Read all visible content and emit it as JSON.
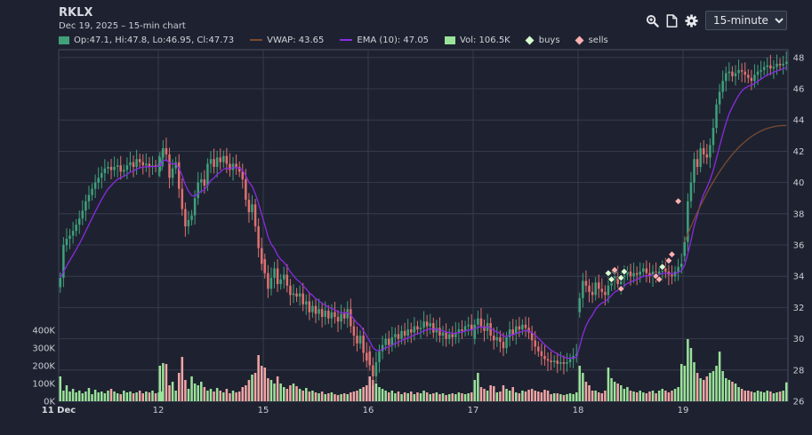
{
  "header": {
    "ticker": "RKLX",
    "subtitle": "Dec 19, 2025 – 15-min chart"
  },
  "toolbar": {
    "zoom_icon": "zoom-in-icon",
    "document_icon": "document-icon",
    "settings_icon": "gear-icon",
    "interval_options": [
      "15-minute"
    ],
    "interval_selected": "15-minute"
  },
  "legend": {
    "ohlc": "Op:47.1, Hi:47.8, Lo:46.95, Cl:47.73",
    "vwap": "VWAP: 43.65",
    "ema": "EMA (10): 47.05",
    "vol": "Vol: 106.5K",
    "buys": "buys",
    "sells": "sells"
  },
  "colors": {
    "background": "#1e2230",
    "grid": "#3b4152",
    "up": "#3fa07a",
    "down": "#e0706f",
    "volume_up": "#9be39a",
    "volume_down": "#f2a6a6",
    "vwap": "#7a4a30",
    "ema": "#8a2be2",
    "buy_marker": "#d8ffd0",
    "sell_marker": "#ffb0b0"
  },
  "chart_data": {
    "type": "candlestick",
    "interval": "15-minute",
    "price_axis": {
      "position": "right",
      "ticks": [
        26,
        28,
        30,
        32,
        34,
        36,
        38,
        40,
        42,
        44,
        46,
        48
      ],
      "ylim": [
        26,
        48.5
      ]
    },
    "volume_axis": {
      "position": "left",
      "ticks": [
        "0K",
        "100K",
        "200K",
        "300K",
        "400K"
      ],
      "max": 400000
    },
    "x_axis": {
      "ticks": [
        "11 Dec",
        "12",
        "15",
        "16",
        "17",
        "18",
        "19"
      ]
    },
    "sessions": [
      {
        "label": "11 Dec",
        "closes": [
          33.9,
          36.0,
          36.4,
          36.6,
          36.9,
          37.3,
          37.7,
          38.2,
          38.8,
          39.2,
          39.6,
          40.0,
          40.3,
          40.6,
          40.9,
          41.0,
          40.8,
          41.0,
          41.1,
          40.7,
          40.8,
          41.1,
          41.3,
          41.0,
          41.5,
          41.3,
          41.1,
          41.2,
          41.0,
          41.1,
          41.0,
          41.2,
          41.4
        ]
      },
      {
        "label": "12",
        "closes": [
          41.6,
          42.2,
          41.8,
          40.3,
          40.9,
          41.3,
          39.6,
          38.3,
          37.2,
          37.6,
          37.9,
          39.0,
          40.0,
          40.2,
          39.8,
          41.2,
          41.5,
          41.0,
          41.6,
          41.3,
          41.7,
          41.2,
          40.8,
          41.2,
          41.0,
          40.7,
          40.2,
          38.9,
          38.1,
          38.6,
          37.2,
          35.8,
          34.8
        ]
      },
      {
        "label": "15",
        "closes": [
          34.2,
          33.2,
          33.9,
          34.5,
          33.5,
          33.8,
          34.1,
          33.4,
          32.8,
          32.9,
          32.7,
          32.9,
          32.2,
          32.4,
          31.7,
          32.1,
          31.6,
          31.9,
          31.4,
          31.8,
          31.3,
          31.7,
          31.4,
          31.1,
          31.6,
          31.3,
          31.9,
          30.8,
          30.2,
          29.7,
          30.2,
          29.1,
          28.6
        ]
      },
      {
        "label": "16",
        "closes": [
          28.3,
          27.6,
          28.5,
          29.2,
          29.6,
          30.0,
          29.6,
          30.1,
          30.3,
          30.0,
          30.5,
          30.2,
          30.6,
          30.4,
          30.8,
          30.6,
          30.7,
          31.1,
          30.8,
          31.0,
          30.4,
          30.7,
          30.2,
          30.4,
          30.0,
          30.3,
          30.1,
          30.4,
          30.6,
          30.5,
          30.8,
          30.9,
          30.6
        ]
      },
      {
        "label": "17",
        "closes": [
          30.9,
          31.3,
          30.8,
          30.5,
          31.0,
          30.2,
          29.9,
          30.1,
          29.8,
          29.4,
          30.1,
          30.6,
          30.3,
          30.8,
          30.6,
          30.9,
          30.7,
          30.4,
          29.9,
          29.5,
          29.2,
          28.9,
          28.7,
          28.6,
          28.5,
          28.6,
          28.4,
          28.5,
          28.4,
          28.5,
          28.7,
          28.9,
          29.0
        ]
      },
      {
        "label": "18",
        "closes": [
          32.6,
          33.7,
          33.4,
          33.0,
          32.8,
          33.6,
          33.2,
          33.0,
          32.8,
          33.4,
          33.7,
          34.0,
          33.5,
          33.8,
          34.1,
          34.3,
          34.0,
          34.2,
          34.1,
          34.3,
          34.5,
          34.2,
          34.0,
          34.3,
          34.1,
          34.3,
          34.5,
          34.3,
          34.1,
          34.0,
          34.3,
          34.6,
          34.8
        ]
      },
      {
        "label": "19",
        "closes": [
          36.2,
          38.8,
          40.0,
          41.5,
          41.0,
          42.2,
          41.8,
          41.6,
          42.4,
          43.5,
          45.0,
          45.8,
          46.5,
          47.0,
          47.1,
          46.8,
          47.0,
          47.2,
          47.1,
          46.9,
          46.7,
          46.5,
          46.9,
          47.1,
          47.2,
          47.4,
          47.5,
          47.3,
          47.4,
          47.6,
          47.5,
          47.6,
          47.73
        ]
      }
    ],
    "vwap_series": [
      {
        "session": "19",
        "start": 36.2,
        "end": 43.65
      }
    ],
    "ema_period": 10,
    "ema_last": 47.05,
    "buys": [
      {
        "session": "18",
        "bar": 9,
        "price": 34.2
      },
      {
        "session": "18",
        "bar": 10,
        "price": 33.8
      },
      {
        "session": "18",
        "bar": 11,
        "price": 34.3
      },
      {
        "session": "18",
        "bar": 13,
        "price": 33.9
      },
      {
        "session": "18",
        "bar": 14,
        "price": 34.3
      },
      {
        "session": "18",
        "bar": 26,
        "price": 34.6
      }
    ],
    "sells": [
      {
        "session": "18",
        "bar": 11,
        "price": 34.4
      },
      {
        "session": "18",
        "bar": 13,
        "price": 33.2
      },
      {
        "session": "18",
        "bar": 24,
        "price": 34.0
      },
      {
        "session": "18",
        "bar": 25,
        "price": 33.8
      },
      {
        "session": "18",
        "bar": 28,
        "price": 35.0
      },
      {
        "session": "18",
        "bar": 29,
        "price": 35.4
      },
      {
        "session": "18",
        "bar": 31,
        "price": 38.8
      }
    ],
    "volumes_k": [
      [
        140,
        60,
        90,
        55,
        70,
        50,
        60,
        45,
        55,
        75,
        40,
        65,
        50,
        55,
        45,
        60,
        70,
        55,
        45,
        40,
        60,
        50,
        55,
        45,
        50,
        60,
        45,
        55,
        50,
        60,
        45,
        50,
        55
      ],
      [
        200,
        215,
        210,
        90,
        110,
        60,
        160,
        250,
        120,
        70,
        140,
        100,
        90,
        110,
        80,
        60,
        70,
        55,
        75,
        60,
        50,
        70,
        45,
        60,
        50,
        55,
        80,
        90,
        120,
        150,
        160,
        260,
        200
      ],
      [
        190,
        130,
        120,
        100,
        140,
        100,
        80,
        70,
        90,
        100,
        85,
        70,
        60,
        75,
        55,
        60,
        50,
        45,
        55,
        40,
        45,
        50,
        40,
        35,
        40,
        45,
        40,
        50,
        55,
        60,
        70,
        80,
        90
      ],
      [
        140,
        120,
        100,
        80,
        70,
        60,
        50,
        60,
        45,
        55,
        40,
        50,
        45,
        55,
        40,
        50,
        45,
        60,
        50,
        40,
        45,
        50,
        40,
        45,
        35,
        40,
        45,
        40,
        50,
        45,
        40,
        45,
        50
      ],
      [
        120,
        160,
        80,
        70,
        60,
        90,
        85,
        50,
        55,
        90,
        70,
        60,
        80,
        50,
        45,
        60,
        55,
        65,
        70,
        60,
        55,
        50,
        65,
        60,
        40,
        45,
        45,
        40,
        35,
        40,
        45,
        40,
        50
      ],
      [
        200,
        160,
        110,
        90,
        60,
        60,
        50,
        45,
        60,
        190,
        130,
        110,
        100,
        90,
        70,
        80,
        60,
        55,
        50,
        60,
        50,
        45,
        55,
        60,
        45,
        60,
        70,
        60,
        50,
        60,
        70,
        80,
        210
      ],
      [
        200,
        350,
        300,
        220,
        160,
        130,
        120,
        140,
        160,
        170,
        200,
        280,
        170,
        130,
        120,
        110,
        100,
        80,
        70,
        60,
        60,
        55,
        50,
        60,
        55,
        50,
        60,
        55,
        45,
        50,
        55,
        60,
        106.5
      ]
    ]
  }
}
